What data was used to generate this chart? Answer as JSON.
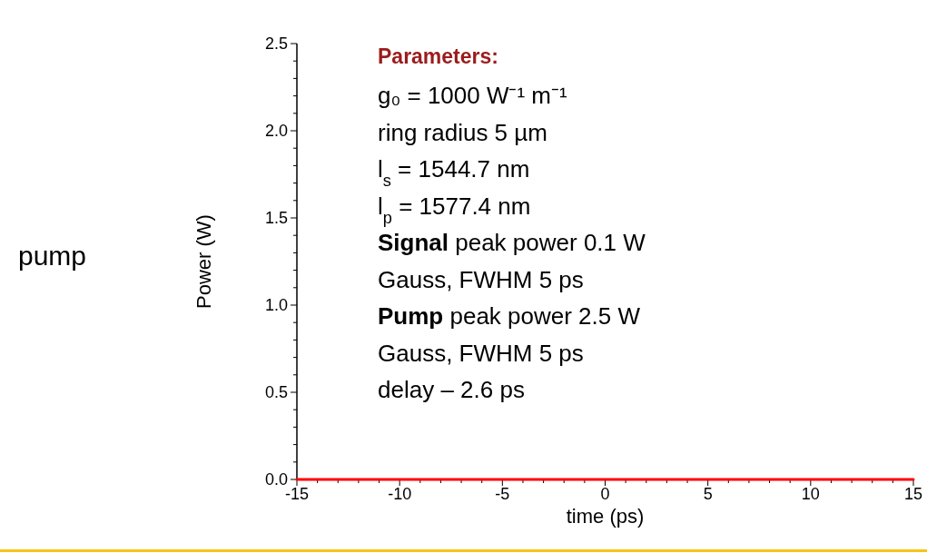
{
  "chart_data": {
    "type": "line",
    "xlabel": "time (ps)",
    "ylabel": "Power (W)",
    "x": [
      -15,
      15
    ],
    "series": [
      {
        "color": "#ff0000",
        "values": [
          0,
          0
        ]
      }
    ],
    "xlim": [
      -15,
      15
    ],
    "ylim": [
      0,
      2.5
    ],
    "xticks": [
      -15,
      {
        "value": -14,
        "label": null
      },
      {
        "value": -13,
        "label": null
      },
      {
        "value": -12,
        "label": null
      },
      {
        "value": -11,
        "label": null
      },
      -10,
      {
        "value": -9,
        "label": null
      },
      {
        "value": -8,
        "label": null
      },
      {
        "value": -7,
        "label": null
      },
      {
        "value": -6,
        "label": null
      },
      -5,
      {
        "value": -4,
        "label": null
      },
      {
        "value": -3,
        "label": null
      },
      {
        "value": -2,
        "label": null
      },
      {
        "value": -1,
        "label": null
      },
      0,
      {
        "value": 1,
        "label": null
      },
      {
        "value": 2,
        "label": null
      },
      {
        "value": 3,
        "label": null
      },
      {
        "value": 4,
        "label": null
      },
      5,
      {
        "value": 6,
        "label": null
      },
      {
        "value": 7,
        "label": null
      },
      {
        "value": 8,
        "label": null
      },
      {
        "value": 9,
        "label": null
      },
      10,
      {
        "value": 11,
        "label": null
      },
      {
        "value": 12,
        "label": null
      },
      {
        "value": 13,
        "label": null
      },
      {
        "value": 14,
        "label": null
      },
      15
    ],
    "yticks": [
      {
        "value": 0,
        "label": "0.0"
      },
      {
        "value": 0.1,
        "label": null
      },
      {
        "value": 0.2,
        "label": null
      },
      {
        "value": 0.3,
        "label": null
      },
      {
        "value": 0.4,
        "label": null
      },
      {
        "value": 0.5,
        "label": "0.5"
      },
      {
        "value": 0.6,
        "label": null
      },
      {
        "value": 0.7,
        "label": null
      },
      {
        "value": 0.8,
        "label": null
      },
      {
        "value": 0.9,
        "label": null
      },
      {
        "value": 1,
        "label": "1.0"
      },
      {
        "value": 1.1,
        "label": null
      },
      {
        "value": 1.2,
        "label": null
      },
      {
        "value": 1.3,
        "label": null
      },
      {
        "value": 1.4,
        "label": null
      },
      {
        "value": 1.5,
        "label": "1.5"
      },
      {
        "value": 1.6,
        "label": null
      },
      {
        "value": 1.7,
        "label": null
      },
      {
        "value": 1.8,
        "label": null
      },
      {
        "value": 1.9,
        "label": null
      },
      {
        "value": 2,
        "label": "2.0"
      },
      {
        "value": 2.1,
        "label": null
      },
      {
        "value": 2.2,
        "label": null
      },
      {
        "value": 2.3,
        "label": null
      },
      {
        "value": 2.4,
        "label": null
      },
      {
        "value": 2.5,
        "label": "2.5"
      }
    ],
    "annotations": [
      "pump",
      "Parameters:",
      "g₀ = 1000 W⁻¹ m⁻¹",
      "ring radius 5 µm",
      "l$_{s}$ = 1544.7 nm",
      "l$_{p}$ = 1577.4 nm",
      "Signal peak power 0.1 W",
      "Gauss, FWHM 5 ps",
      "Pump peak power  2.5 W",
      "Gauss, FWHM 5 ps",
      "delay – 2.6 ps"
    ]
  }
}
